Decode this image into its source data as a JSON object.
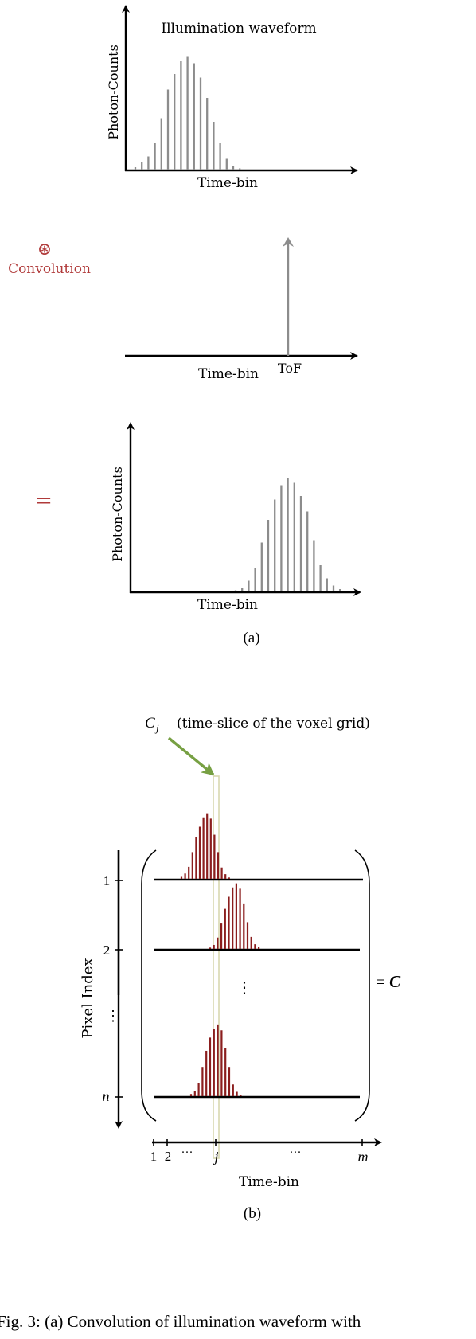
{
  "panel_a": {
    "waveform": {
      "title": "Illumination waveform",
      "ylabel": "Photon-Counts",
      "xlabel": "Time-bin",
      "bar_color": "#8c8c8c",
      "bar_heights": [
        0.02,
        0.06,
        0.11,
        0.22,
        0.43,
        0.67,
        0.8,
        0.91,
        0.95,
        0.89,
        0.77,
        0.6,
        0.4,
        0.22,
        0.09,
        0.03,
        0.01
      ]
    },
    "operator": {
      "symbol": "⊛",
      "label": "Convolution",
      "color": "#b03a3a"
    },
    "impulse": {
      "xlabel": "Time-bin",
      "tof_label": "ToF",
      "color": "#8c8c8c"
    },
    "equals": {
      "symbol": "=",
      "color": "#b03a3a"
    },
    "result": {
      "ylabel": "Photon-Counts",
      "xlabel": "Time-bin",
      "bar_color": "#8c8c8c",
      "bar_heights": [
        0.01,
        0.03,
        0.09,
        0.2,
        0.41,
        0.6,
        0.77,
        0.89,
        0.95,
        0.91,
        0.8,
        0.67,
        0.43,
        0.22,
        0.11,
        0.05,
        0.02
      ]
    },
    "sublabel": "(a)"
  },
  "panel_b": {
    "annotation": "C_j (time-slice of the voxel grid)",
    "annotation_symbol": "C",
    "annotation_sub": "j",
    "annotation_text": "(time-slice of the voxel grid)",
    "arrow_color": "#77a043",
    "slice_color": "#d9d9b0",
    "ylabel": "Pixel Index",
    "row_labels": [
      "1",
      "2",
      "⋮",
      "n"
    ],
    "vdots": "⋮",
    "matrix_label": "= C",
    "bar_color": "#8b1e1e",
    "xlabel": "Time-bin",
    "x_ticks": [
      "1",
      "2",
      "···",
      "j",
      "···",
      "m"
    ],
    "rows": [
      {
        "bar_heights": [
          0.03,
          0.08,
          0.18,
          0.4,
          0.62,
          0.78,
          0.92,
          0.98,
          0.9,
          0.66,
          0.4,
          0.17,
          0.07,
          0.02
        ]
      },
      {
        "bar_heights": [
          0.02,
          0.06,
          0.17,
          0.38,
          0.6,
          0.78,
          0.92,
          0.98,
          0.9,
          0.68,
          0.4,
          0.18,
          0.07,
          0.03
        ]
      },
      {
        "bar_heights": [
          0.03,
          0.07,
          0.18,
          0.4,
          0.62,
          0.8,
          0.92,
          0.98,
          0.9,
          0.66,
          0.4,
          0.16,
          0.06,
          0.02
        ]
      }
    ],
    "sublabel": "(b)"
  },
  "caption": "Fig. 3: (a) Convolution of illumination waveform with"
}
